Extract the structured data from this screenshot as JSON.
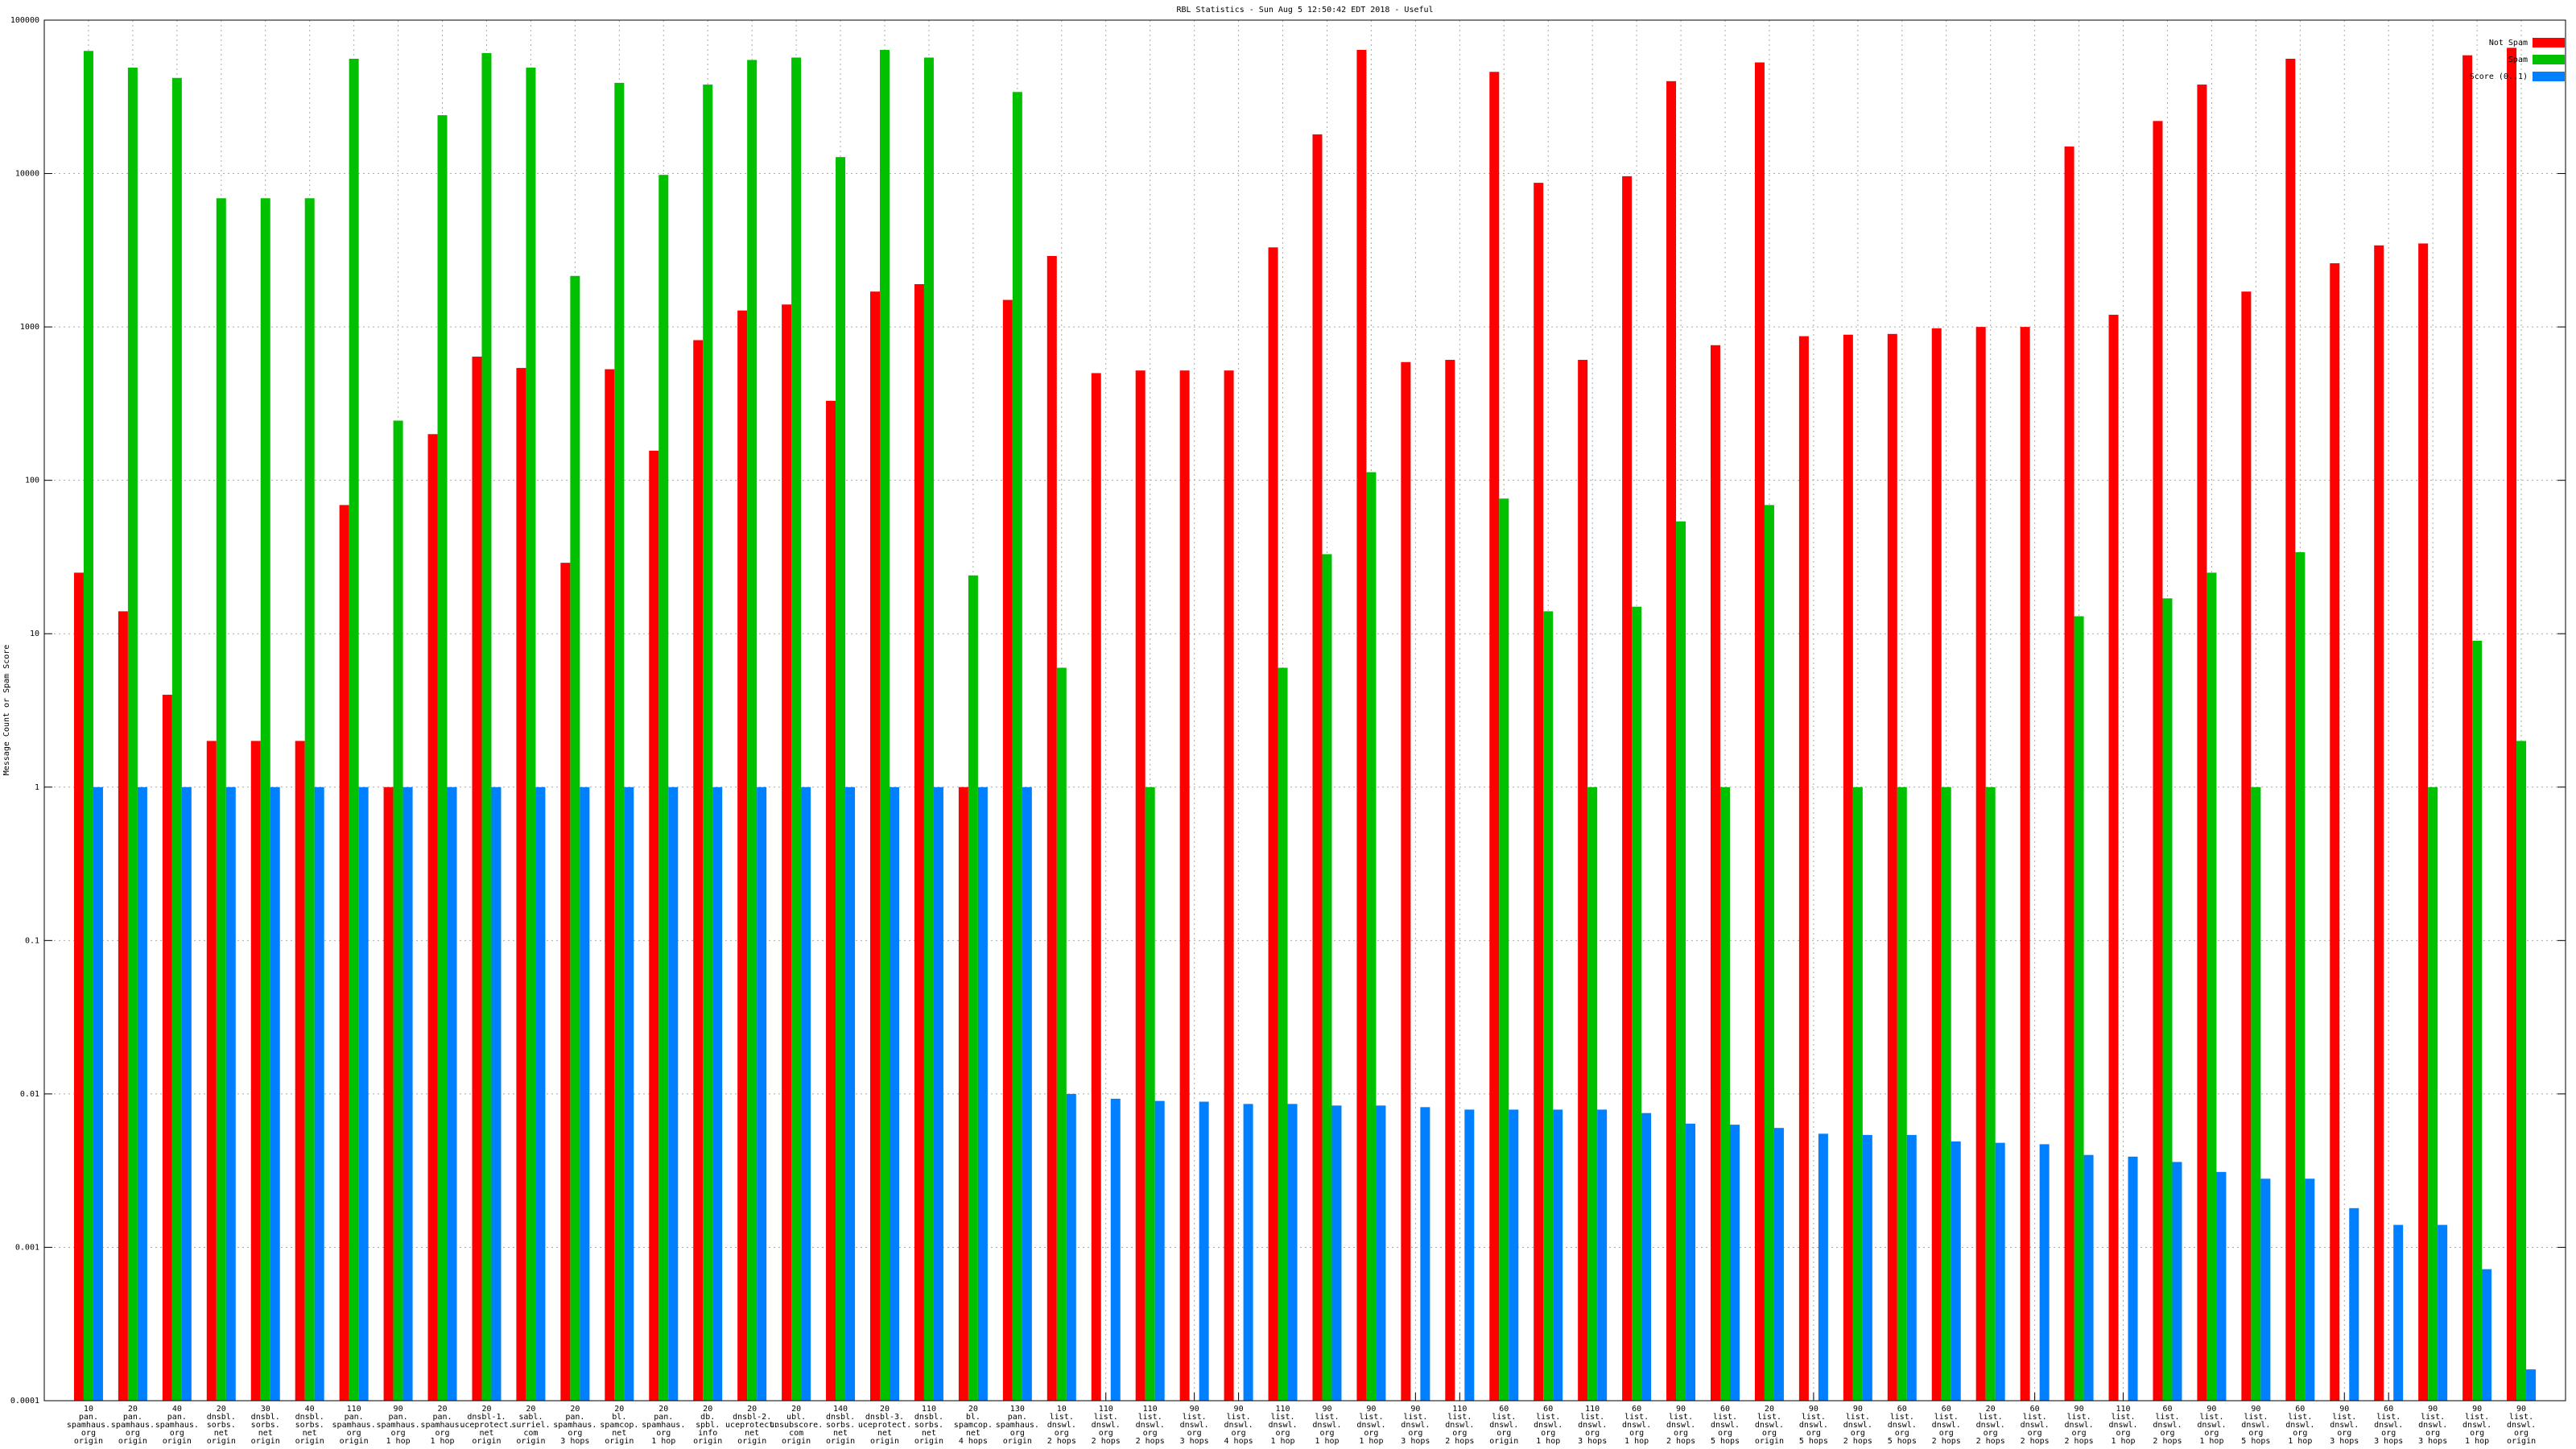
{
  "chart_data": {
    "type": "bar",
    "title": "RBL Statistics - Sun Aug  5 12:50:42 EDT 2018 - Useful",
    "y_label": "Message Count or Spam Score",
    "log_scale": true,
    "grid": true,
    "legend": "top-right",
    "ylim": [
      0.0001,
      100000
    ],
    "yticks": [
      0.0001,
      0.001,
      0.01,
      0.1,
      1,
      10,
      100,
      1000,
      10000,
      100000
    ],
    "categories": [
      [
        "10",
        "pan.",
        "spamhaus.",
        "org",
        "origin"
      ],
      [
        "20",
        "pan.",
        "spamhaus.",
        "org",
        "origin"
      ],
      [
        "40",
        "pan.",
        "spamhaus.",
        "org",
        "origin"
      ],
      [
        "20",
        "dnsbl.",
        "sorbs.",
        "net",
        "origin"
      ],
      [
        "30",
        "dnsbl.",
        "sorbs.",
        "net",
        "origin"
      ],
      [
        "40",
        "dnsbl.",
        "sorbs.",
        "net",
        "origin"
      ],
      [
        "110",
        "pan.",
        "spamhaus.",
        "org",
        "origin"
      ],
      [
        "90",
        "pan.",
        "spamhaus.",
        "org",
        "1 hop"
      ],
      [
        "20",
        "pan.",
        "spamhaus.",
        "org",
        "1 hop"
      ],
      [
        "20",
        "dnsbl-1.",
        "uceprotect.",
        "net",
        "origin"
      ],
      [
        "20",
        "sabl.",
        "surriel.",
        "com",
        "origin"
      ],
      [
        "20",
        "pan.",
        "spamhaus.",
        "org",
        "3 hops"
      ],
      [
        "20",
        "bl.",
        "spamcop.",
        "net",
        "origin"
      ],
      [
        "20",
        "pan.",
        "spamhaus.",
        "org",
        "1 hop"
      ],
      [
        "20",
        "db.",
        "spbl.",
        "info",
        "origin"
      ],
      [
        "20",
        "dnsbl-2.",
        "uceprotect.",
        "net",
        "origin"
      ],
      [
        "20",
        "ubl.",
        "unsubscore.",
        "com",
        "origin"
      ],
      [
        "140",
        "dnsbl.",
        "sorbs.",
        "net",
        "origin"
      ],
      [
        "20",
        "dnsbl-3.",
        "uceprotect.",
        "net",
        "origin"
      ],
      [
        "110",
        "dnsbl.",
        "sorbs.",
        "net",
        "origin"
      ],
      [
        "20",
        "bl.",
        "spamcop.",
        "net",
        "4 hops"
      ],
      [
        "130",
        "pan.",
        "spamhaus.",
        "org",
        "origin"
      ],
      [
        "10",
        "list.",
        "dnswl.",
        "org",
        "2 hops"
      ],
      [
        "110",
        "list.",
        "dnswl.",
        "org",
        "2 hops"
      ],
      [
        "110",
        "list.",
        "dnswl.",
        "org",
        "2 hops"
      ],
      [
        "90",
        "list.",
        "dnswl.",
        "org",
        "3 hops"
      ],
      [
        "90",
        "list.",
        "dnswl.",
        "org",
        "4 hops"
      ],
      [
        "110",
        "list.",
        "dnswl.",
        "org",
        "1 hop"
      ],
      [
        "90",
        "list.",
        "dnswl.",
        "org",
        "1 hop"
      ],
      [
        "90",
        "list.",
        "dnswl.",
        "org",
        "1 hop"
      ],
      [
        "90",
        "list.",
        "dnswl.",
        "org",
        "3 hops"
      ],
      [
        "110",
        "list.",
        "dnswl.",
        "org",
        "2 hops"
      ],
      [
        "60",
        "list.",
        "dnswl.",
        "org",
        "origin"
      ],
      [
        "60",
        "list.",
        "dnswl.",
        "org",
        "1 hop"
      ],
      [
        "110",
        "list.",
        "dnswl.",
        "org",
        "3 hops"
      ],
      [
        "60",
        "list.",
        "dnswl.",
        "org",
        "1 hop"
      ],
      [
        "90",
        "list.",
        "dnswl.",
        "org",
        "2 hops"
      ],
      [
        "60",
        "list.",
        "dnswl.",
        "org",
        "5 hops"
      ],
      [
        "20",
        "list.",
        "dnswl.",
        "org",
        "origin"
      ],
      [
        "90",
        "list.",
        "dnswl.",
        "org",
        "5 hops"
      ],
      [
        "90",
        "list.",
        "dnswl.",
        "org",
        "2 hops"
      ],
      [
        "60",
        "list.",
        "dnswl.",
        "org",
        "5 hops"
      ],
      [
        "60",
        "list.",
        "dnswl.",
        "org",
        "2 hops"
      ],
      [
        "20",
        "list.",
        "dnswl.",
        "org",
        "2 hops"
      ],
      [
        "60",
        "list.",
        "dnswl.",
        "org",
        "2 hops"
      ],
      [
        "90",
        "list.",
        "dnswl.",
        "org",
        "2 hops"
      ],
      [
        "110",
        "list.",
        "dnswl.",
        "org",
        "1 hop"
      ],
      [
        "60",
        "list.",
        "dnswl.",
        "org",
        "2 hops"
      ],
      [
        "90",
        "list.",
        "dnswl.",
        "org",
        "1 hop"
      ],
      [
        "90",
        "list.",
        "dnswl.",
        "org",
        "5 hops"
      ],
      [
        "60",
        "list.",
        "dnswl.",
        "org",
        "1 hop"
      ],
      [
        "90",
        "list.",
        "dnswl.",
        "org",
        "3 hops"
      ],
      [
        "60",
        "list.",
        "dnswl.",
        "org",
        "3 hops"
      ],
      [
        "90",
        "list.",
        "dnswl.",
        "org",
        "3 hops"
      ],
      [
        "90",
        "list.",
        "dnswl.",
        "org",
        "1 hop"
      ],
      [
        "90",
        "list.",
        "dnswl.",
        "org",
        "origin"
      ]
    ],
    "series": [
      {
        "name": "Not Spam",
        "color": "#ff0000",
        "values": [
          25,
          14,
          4,
          2,
          2,
          2,
          69,
          1,
          200,
          640,
          540,
          29,
          530,
          156,
          820,
          1280,
          1400,
          330,
          1700,
          1900,
          1,
          1500,
          2900,
          500,
          520,
          520,
          520,
          3300,
          18000,
          64000,
          590,
          610,
          46000,
          8700,
          610,
          9600,
          40000,
          760,
          53000,
          870,
          890,
          900,
          980,
          1000,
          1000,
          15000,
          1200,
          22000,
          38000,
          1700,
          56000,
          2600,
          3400,
          3500,
          59000,
          66000
        ]
      },
      {
        "name": "Spam",
        "color": "#00c000",
        "values": [
          63000,
          49000,
          42000,
          6900,
          6900,
          6900,
          56000,
          245,
          24000,
          61000,
          49000,
          2150,
          39000,
          9800,
          38000,
          55000,
          57000,
          12800,
          64000,
          57000,
          24,
          34000,
          6,
          null,
          1,
          null,
          null,
          6,
          33,
          113,
          null,
          null,
          76,
          14,
          1,
          15,
          54,
          1,
          69,
          null,
          1,
          1,
          1,
          1,
          null,
          13,
          null,
          17,
          25,
          1,
          34,
          null,
          null,
          1,
          9,
          2
        ]
      },
      {
        "name": "Score (0..1)",
        "color": "#0080ff",
        "values": [
          1,
          1,
          1,
          1,
          1,
          1,
          1,
          1,
          1,
          1,
          1,
          1,
          1,
          1,
          1,
          1,
          1,
          1,
          1,
          1,
          1,
          1,
          0.01,
          0.0093,
          0.009,
          0.0089,
          0.0086,
          0.0086,
          0.0084,
          0.0084,
          0.0082,
          0.0079,
          0.0079,
          0.0079,
          0.0079,
          0.0075,
          0.0064,
          0.0063,
          0.006,
          0.0055,
          0.0054,
          0.0054,
          0.0049,
          0.0048,
          0.0047,
          0.004,
          0.0039,
          0.0036,
          0.0031,
          0.0028,
          0.0028,
          0.0018,
          0.0014,
          0.0014,
          0.00072,
          0.00016
        ]
      }
    ]
  }
}
